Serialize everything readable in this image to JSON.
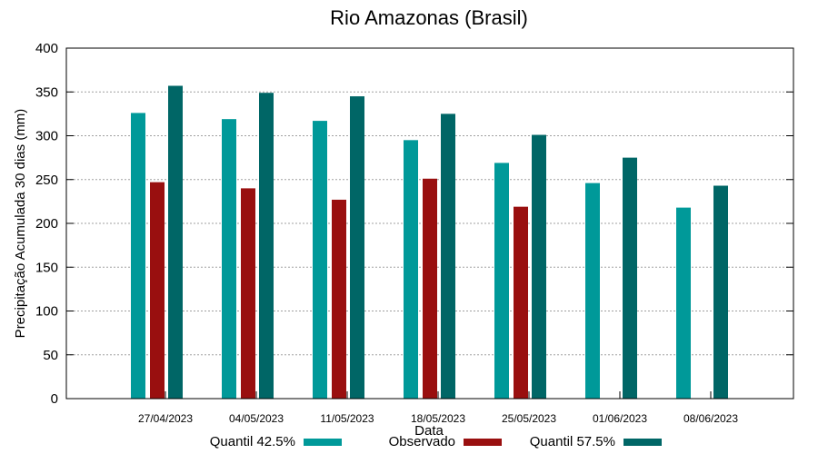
{
  "chart_data": {
    "type": "bar",
    "title": "Rio Amazonas (Brasil)",
    "xlabel": "Data",
    "ylabel": "Precipitação Acumulada 30 dias (mm)",
    "ylim": [
      0,
      400
    ],
    "yticks": [
      0,
      50,
      100,
      150,
      200,
      250,
      300,
      350,
      400
    ],
    "grid": true,
    "legend_position": "bottom",
    "categories": [
      "27/04/2023",
      "04/05/2023",
      "11/05/2023",
      "18/05/2023",
      "25/05/2023",
      "01/06/2023",
      "08/06/2023"
    ],
    "series": [
      {
        "name": "Quantil 42.5%",
        "color": "#009999",
        "values": [
          326,
          319,
          317,
          295,
          269,
          246,
          218
        ]
      },
      {
        "name": "Observado",
        "color": "#990f0f",
        "values": [
          247,
          240,
          227,
          251,
          219,
          null,
          null
        ]
      },
      {
        "name": "Quantil 57.5%",
        "color": "#006666",
        "values": [
          357,
          349,
          345,
          325,
          301,
          275,
          243
        ]
      }
    ]
  }
}
